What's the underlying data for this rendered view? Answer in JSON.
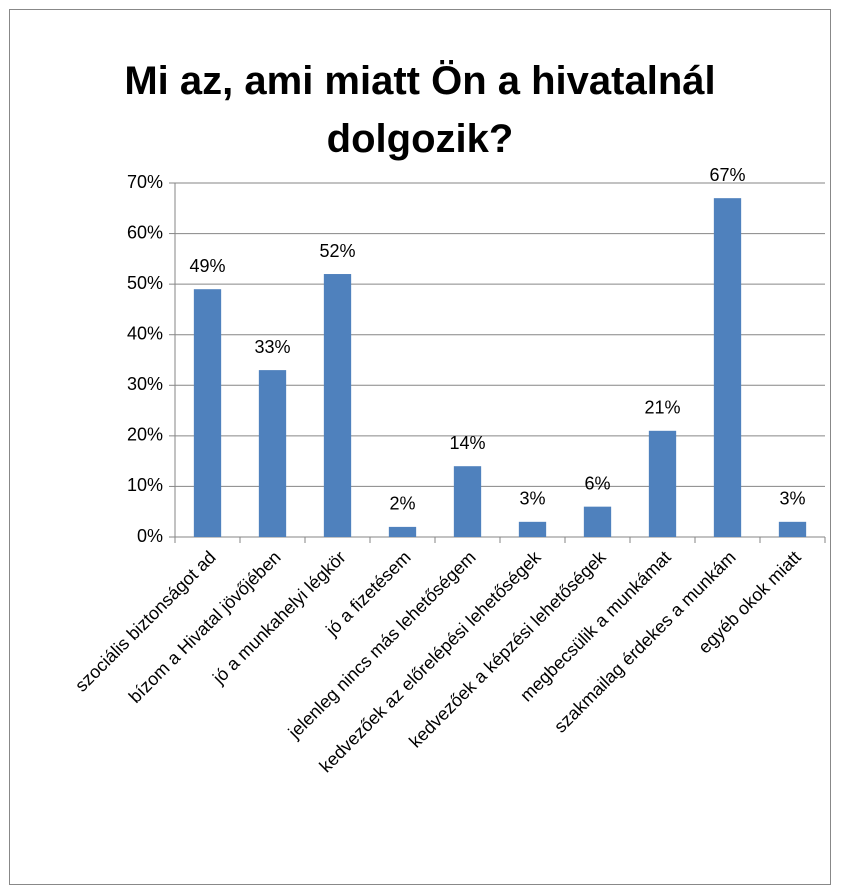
{
  "chart_data": {
    "type": "bar",
    "title": "Mi az, ami miatt Ön a hivatalnál dolgozik?",
    "categories": [
      "szociális biztonságot ad",
      "bízom a Hivatal jövőjében",
      "jó a munkahelyi légkör",
      "jó a fizetésem",
      "jelenleg nincs más lehetőségem",
      "kedvezőek az előrelépési lehetőségek",
      "kedvezőek a képzési lehetőségek",
      "megbecsülik a munkámat",
      "szakmailag érdekes a munkám",
      "egyéb okok miatt"
    ],
    "values": [
      49,
      33,
      52,
      2,
      14,
      3,
      6,
      21,
      67,
      3
    ],
    "value_labels": [
      "49%",
      "33%",
      "52%",
      "2%",
      "14%",
      "3%",
      "6%",
      "21%",
      "67%",
      "3%"
    ],
    "color": "#4f81bd",
    "ylim": [
      0,
      70
    ],
    "yticks": [
      {
        "value": 0,
        "label": "0%"
      },
      {
        "value": 10,
        "label": "10%"
      },
      {
        "value": 20,
        "label": "20%"
      },
      {
        "value": 30,
        "label": "30%"
      },
      {
        "value": 40,
        "label": "40%"
      },
      {
        "value": 50,
        "label": "50%"
      },
      {
        "value": 60,
        "label": "60%"
      },
      {
        "value": 70,
        "label": "70%"
      }
    ],
    "grid": true
  }
}
